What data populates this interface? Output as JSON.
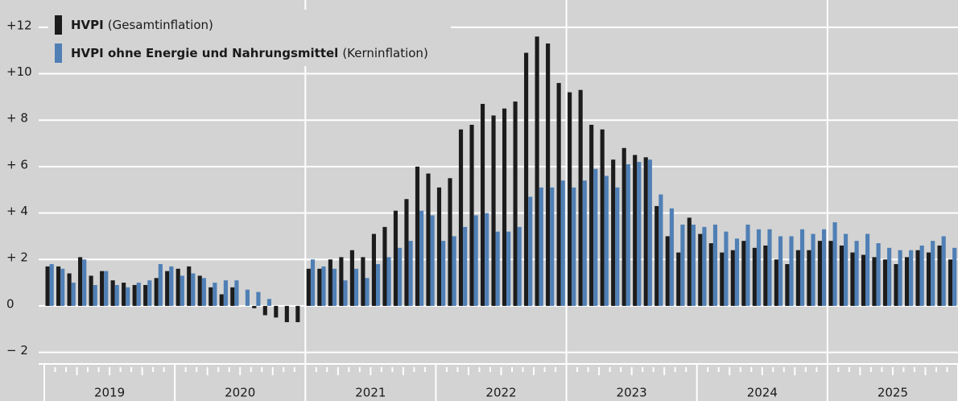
{
  "chart_data": {
    "type": "bar",
    "years": [
      "2019",
      "2020",
      "2021",
      "2022",
      "2023",
      "2024",
      "2025"
    ],
    "months_per_year": 12,
    "series": [
      {
        "name": "HVPI",
        "note": "(Gesamtinflation)",
        "color": "#1c1c1c",
        "values": [
          1.7,
          1.7,
          1.4,
          2.1,
          1.3,
          1.5,
          1.1,
          1.0,
          0.9,
          0.9,
          1.2,
          1.5,
          1.6,
          1.7,
          1.3,
          0.8,
          0.5,
          0.8,
          0.0,
          -0.1,
          -0.4,
          -0.5,
          -0.7,
          -0.7,
          1.6,
          1.6,
          2.0,
          2.1,
          2.4,
          2.1,
          3.1,
          3.4,
          4.1,
          4.6,
          6.0,
          5.7,
          5.1,
          5.5,
          7.6,
          7.8,
          8.7,
          8.2,
          8.5,
          8.8,
          10.9,
          11.6,
          11.3,
          9.6,
          9.2,
          9.3,
          7.8,
          7.6,
          6.3,
          6.8,
          6.5,
          6.4,
          4.3,
          3.0,
          2.3,
          3.8,
          3.1,
          2.7,
          2.3,
          2.4,
          2.8,
          2.5,
          2.6,
          2.0,
          1.8,
          2.4,
          2.4,
          2.8,
          2.8,
          2.6,
          2.3,
          2.2,
          2.1,
          2.0,
          1.8,
          2.1,
          2.4,
          2.3,
          2.6,
          2.0
        ]
      },
      {
        "name": "HVPI ohne Energie und Nahrungsmittel",
        "note": "(Kerninflation)",
        "color": "#4f7fb5",
        "values": [
          1.8,
          1.6,
          1.0,
          2.0,
          0.9,
          1.5,
          0.9,
          0.8,
          1.0,
          1.1,
          1.8,
          1.7,
          1.3,
          1.4,
          1.2,
          1.0,
          1.1,
          1.1,
          0.7,
          0.6,
          0.3,
          0.0,
          0.0,
          0.0,
          2.0,
          1.7,
          1.6,
          1.1,
          1.6,
          1.2,
          1.8,
          2.1,
          2.5,
          2.8,
          4.1,
          3.9,
          2.8,
          3.0,
          3.4,
          3.9,
          4.0,
          3.2,
          3.2,
          3.4,
          4.7,
          5.1,
          5.1,
          5.4,
          5.1,
          5.4,
          5.9,
          5.6,
          5.1,
          6.1,
          6.2,
          6.3,
          4.8,
          4.2,
          3.5,
          3.5,
          3.4,
          3.5,
          3.2,
          2.9,
          3.5,
          3.3,
          3.3,
          3.0,
          3.0,
          3.3,
          3.1,
          3.3,
          3.6,
          3.1,
          2.8,
          3.1,
          2.7,
          2.5,
          2.4,
          2.4,
          2.6,
          2.8,
          3.0,
          2.5
        ]
      }
    ],
    "ylim": [
      -2.5,
      13
    ],
    "yticks": [
      {
        "value": -2,
        "label": "− 2"
      },
      0,
      {
        "value": 2,
        "label": "+ 2"
      },
      {
        "value": 4,
        "label": "+ 4"
      },
      {
        "value": 6,
        "label": "+ 6"
      },
      {
        "value": 8,
        "label": "+ 8"
      },
      {
        "value": 10,
        "label": "+10"
      },
      {
        "value": 12,
        "label": "+12"
      }
    ],
    "grid": true,
    "legend": "upper left"
  }
}
